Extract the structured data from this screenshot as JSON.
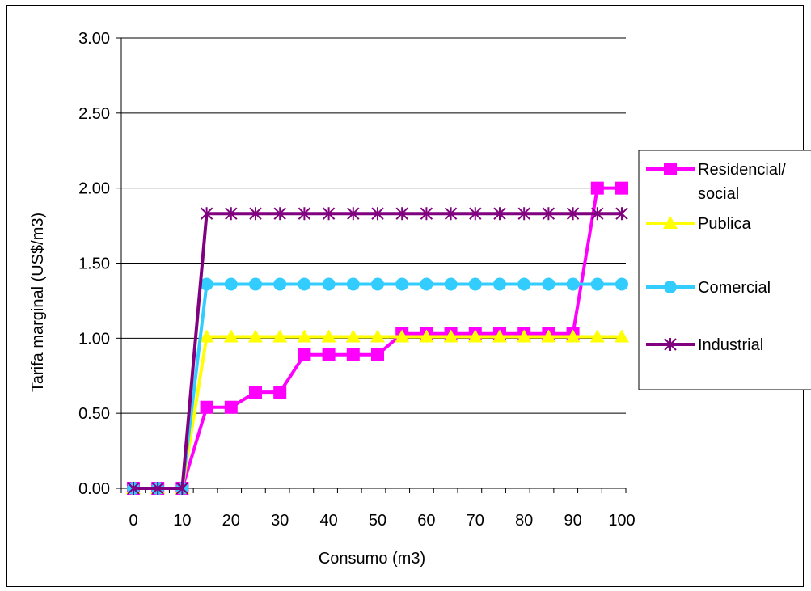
{
  "chart_data": {
    "type": "line",
    "xlabel": "Consumo (m3)",
    "ylabel": "Tarifa marginal (US$/m3)",
    "ylim": [
      0,
      3
    ],
    "y_ticks": [
      "0.00",
      "0.50",
      "1.00",
      "1.50",
      "2.00",
      "2.50",
      "3.00"
    ],
    "x_ticks": [
      "0",
      "10",
      "20",
      "30",
      "40",
      "50",
      "60",
      "70",
      "80",
      "90",
      "100"
    ],
    "x": [
      0,
      5,
      10,
      15,
      20,
      25,
      30,
      35,
      40,
      45,
      50,
      55,
      60,
      65,
      70,
      75,
      80,
      85,
      90,
      95,
      100
    ],
    "grid": "horizontal",
    "legend_position": "right",
    "series": [
      {
        "name_lines": [
          "Residencial/",
          "social"
        ],
        "color": "#ff00ff",
        "marker": "square",
        "values": [
          0,
          0,
          0,
          0.54,
          0.54,
          0.64,
          0.64,
          0.89,
          0.89,
          0.89,
          0.89,
          1.03,
          1.03,
          1.03,
          1.03,
          1.03,
          1.03,
          1.03,
          1.03,
          2.0,
          2.0
        ]
      },
      {
        "name_lines": [
          "Publica"
        ],
        "color": "#ffff00",
        "marker": "triangle",
        "values": [
          0,
          0,
          0,
          1.01,
          1.01,
          1.01,
          1.01,
          1.01,
          1.01,
          1.01,
          1.01,
          1.01,
          1.01,
          1.01,
          1.01,
          1.01,
          1.01,
          1.01,
          1.01,
          1.01,
          1.01
        ]
      },
      {
        "name_lines": [
          "Comercial"
        ],
        "color": "#33ccff",
        "marker": "circle",
        "values": [
          0,
          0,
          0,
          1.36,
          1.36,
          1.36,
          1.36,
          1.36,
          1.36,
          1.36,
          1.36,
          1.36,
          1.36,
          1.36,
          1.36,
          1.36,
          1.36,
          1.36,
          1.36,
          1.36,
          1.36
        ]
      },
      {
        "name_lines": [
          "Industrial"
        ],
        "color": "#800080",
        "marker": "star",
        "values": [
          0,
          0,
          0,
          1.83,
          1.83,
          1.83,
          1.83,
          1.83,
          1.83,
          1.83,
          1.83,
          1.83,
          1.83,
          1.83,
          1.83,
          1.83,
          1.83,
          1.83,
          1.83,
          1.83,
          1.83
        ]
      }
    ]
  }
}
